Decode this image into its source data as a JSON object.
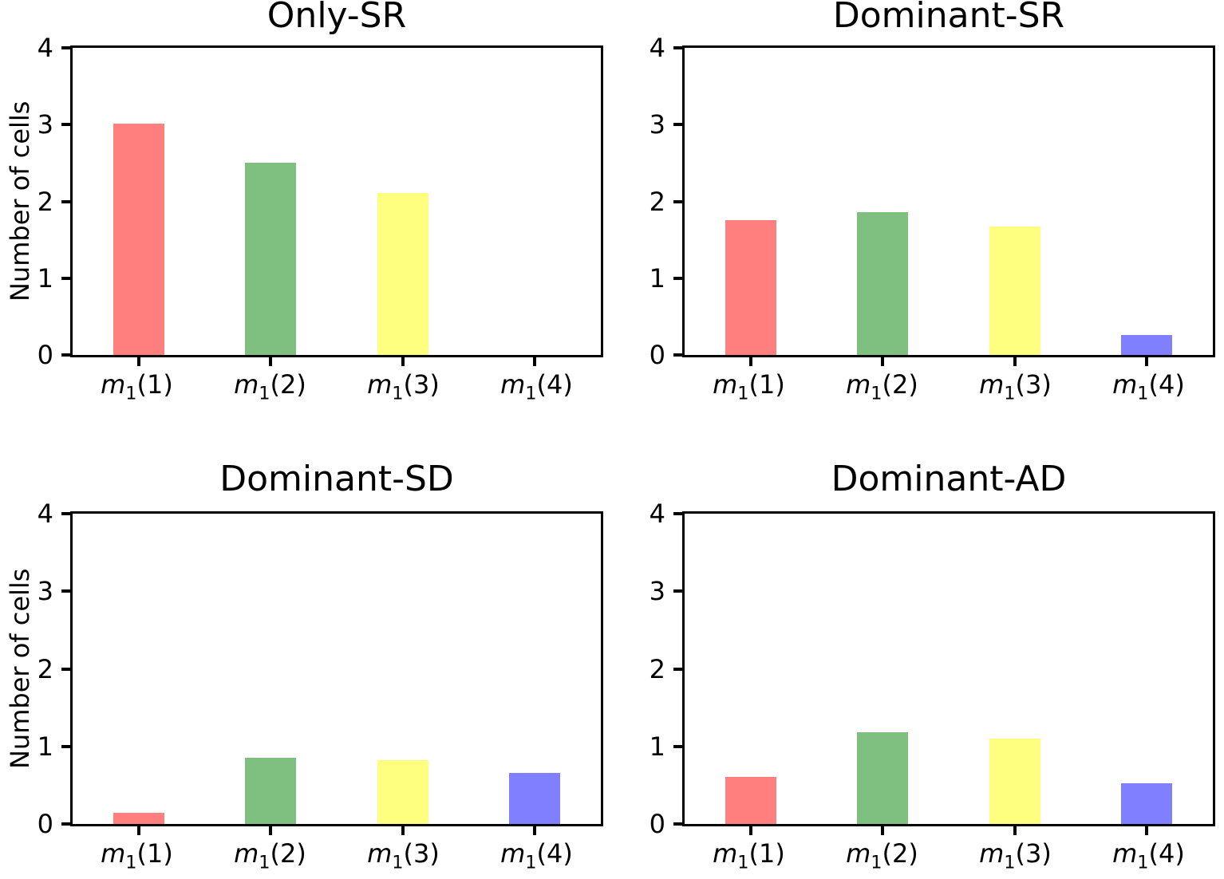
{
  "figure": {
    "ylabel": "Number of cells",
    "background_color": "#ffffff",
    "axis_color": "#000000",
    "categories": [
      {
        "prefix": "m",
        "sub": "1",
        "suffix": "(1)"
      },
      {
        "prefix": "m",
        "sub": "1",
        "suffix": "(2)"
      },
      {
        "prefix": "m",
        "sub": "1",
        "suffix": "(3)"
      },
      {
        "prefix": "m",
        "sub": "1",
        "suffix": "(4)"
      }
    ],
    "bar_colors": [
      "#ff7f7f",
      "#7fbf7f",
      "#ffff7f",
      "#7f7fff"
    ]
  },
  "chart_data": [
    {
      "type": "bar",
      "title": "Only-SR",
      "categories": [
        "m1(1)",
        "m1(2)",
        "m1(3)",
        "m1(4)"
      ],
      "values": [
        3.01,
        2.5,
        2.11,
        0
      ],
      "bar_colors": [
        "#ff7f7f",
        "#7fbf7f",
        "#ffff7f",
        "#7f7fff"
      ],
      "xlabel": "",
      "ylabel": "Number of cells",
      "ylim": [
        0,
        4
      ],
      "yticks": [
        0,
        1,
        2,
        3,
        4
      ],
      "grid": false,
      "legend_position": "none"
    },
    {
      "type": "bar",
      "title": "Dominant-SR",
      "categories": [
        "m1(1)",
        "m1(2)",
        "m1(3)",
        "m1(4)"
      ],
      "values": [
        1.76,
        1.86,
        1.67,
        0.26
      ],
      "bar_colors": [
        "#ff7f7f",
        "#7fbf7f",
        "#ffff7f",
        "#7f7fff"
      ],
      "xlabel": "",
      "ylabel": "",
      "ylim": [
        0,
        4
      ],
      "yticks": [
        0,
        1,
        2,
        3,
        4
      ],
      "grid": false,
      "legend_position": "none"
    },
    {
      "type": "bar",
      "title": "Dominant-SD",
      "categories": [
        "m1(1)",
        "m1(2)",
        "m1(3)",
        "m1(4)"
      ],
      "values": [
        0.14,
        0.85,
        0.82,
        0.66
      ],
      "bar_colors": [
        "#ff7f7f",
        "#7fbf7f",
        "#ffff7f",
        "#7f7fff"
      ],
      "xlabel": "",
      "ylabel": "Number of cells",
      "ylim": [
        0,
        4
      ],
      "yticks": [
        0,
        1,
        2,
        3,
        4
      ],
      "grid": false,
      "legend_position": "none"
    },
    {
      "type": "bar",
      "title": "Dominant-AD",
      "categories": [
        "m1(1)",
        "m1(2)",
        "m1(3)",
        "m1(4)"
      ],
      "values": [
        0.61,
        1.18,
        1.1,
        0.52
      ],
      "bar_colors": [
        "#ff7f7f",
        "#7fbf7f",
        "#ffff7f",
        "#7f7fff"
      ],
      "xlabel": "",
      "ylabel": "",
      "ylim": [
        0,
        4
      ],
      "yticks": [
        0,
        1,
        2,
        3,
        4
      ],
      "grid": false,
      "legend_position": "none"
    }
  ]
}
